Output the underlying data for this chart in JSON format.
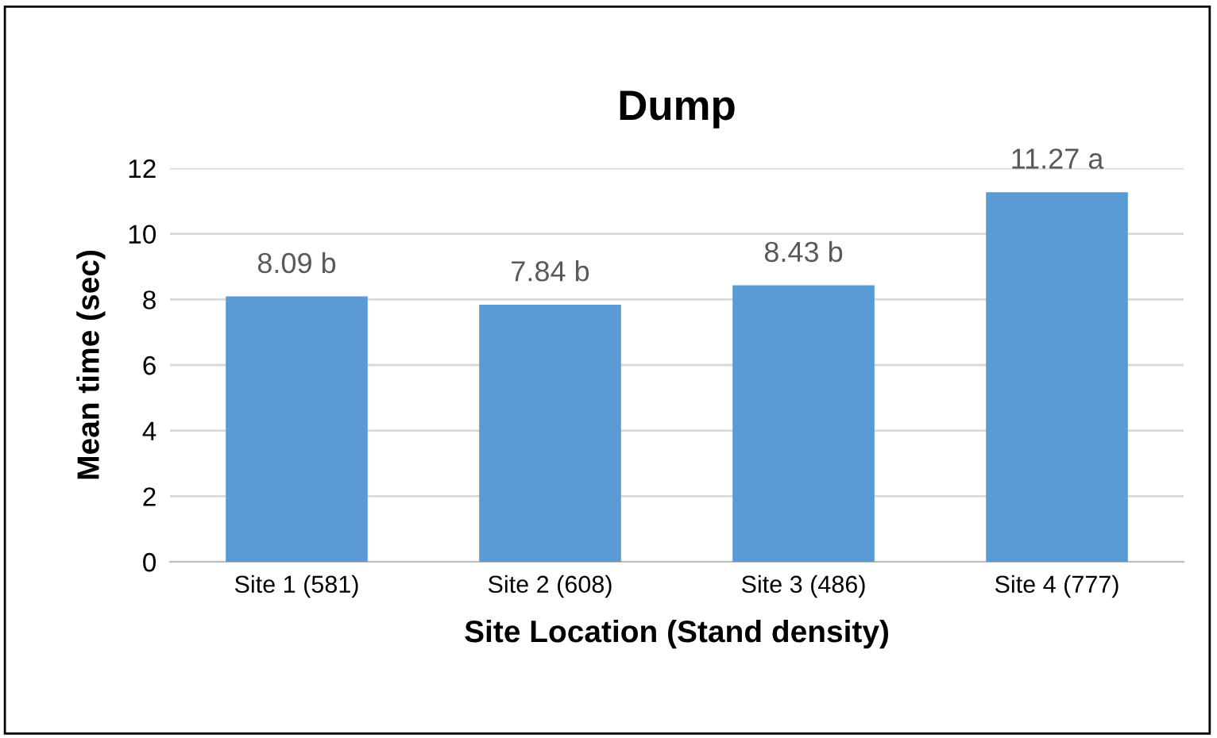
{
  "chart_data": {
    "type": "bar",
    "title": "Dump",
    "xlabel": "Site Location (Stand density)",
    "ylabel": "Mean time (sec)",
    "categories": [
      "Site 1 (581)",
      "Site 2 (608)",
      "Site 3 (486)",
      "Site 4 (777)"
    ],
    "values": [
      8.09,
      7.84,
      8.43,
      11.27
    ],
    "value_labels": [
      "8.09 b",
      "7.84 b",
      "8.43 b",
      "11.27 a"
    ],
    "color": "#5b9bd5",
    "ylim": [
      0,
      12
    ],
    "yticks": [
      0,
      2,
      4,
      6,
      8,
      10,
      12
    ],
    "grid": "y",
    "legend": false
  }
}
